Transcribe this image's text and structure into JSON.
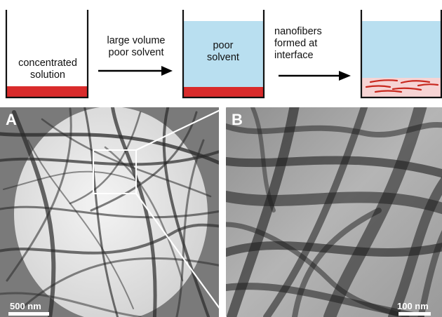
{
  "schematic": {
    "beaker1_label": "concentrated\nsolution",
    "arrow1_label": "large volume\npoor solvent",
    "beaker2_label": "poor\nsolvent",
    "arrow2_label": "nanofibers\nformed at\ninterface",
    "colors": {
      "solution": "#d92b2b",
      "poor_solvent": "#b9dff0",
      "interface_layer": "#f6d4d4",
      "nanofiber": "#c8291f",
      "beaker_wall": "#111111"
    }
  },
  "panels": {
    "left": {
      "letter": "A",
      "scale_bar": "500 nm"
    },
    "right": {
      "letter": "B",
      "scale_bar": "100 nm"
    }
  }
}
